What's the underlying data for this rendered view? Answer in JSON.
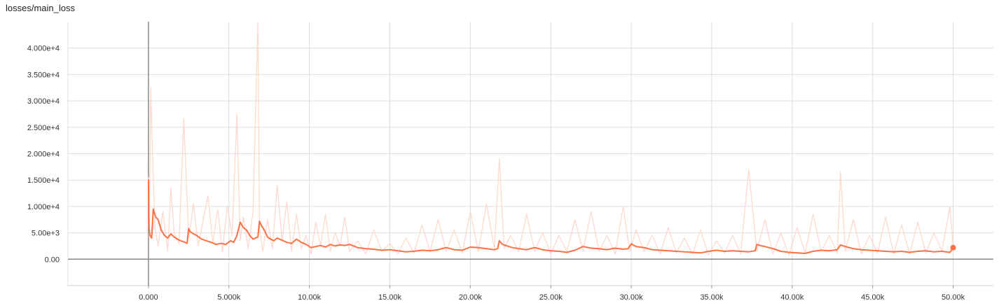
{
  "chart_title": "losses/main_loss",
  "chart_data": {
    "type": "line",
    "title": "losses/main_loss",
    "xlabel": "",
    "ylabel": "",
    "xlim": [
      -5000,
      52500
    ],
    "ylim": [
      -5000,
      45000
    ],
    "x_ticks": [
      0,
      5000,
      10000,
      15000,
      20000,
      25000,
      30000,
      35000,
      40000,
      45000,
      50000
    ],
    "x_tick_labels": [
      "0.000",
      "5.000k",
      "10.00k",
      "15.00k",
      "20.00k",
      "25.00k",
      "30.00k",
      "35.00k",
      "40.00k",
      "45.00k",
      "50.00k"
    ],
    "y_ticks": [
      0,
      5000,
      10000,
      15000,
      20000,
      25000,
      30000,
      35000,
      40000
    ],
    "y_tick_labels": [
      "0.00",
      "5.00e+3",
      "1.000e+4",
      "1.500e+4",
      "2.000e+4",
      "2.500e+4",
      "3.000e+4",
      "3.500e+4",
      "4.000e+4"
    ],
    "grid": true,
    "series": [
      {
        "color": "#fdd5ca",
        "style": "raw",
        "x": [
          0,
          50,
          150,
          250,
          400,
          600,
          900,
          1200,
          1400,
          1600,
          1900,
          2200,
          2500,
          2800,
          3100,
          3400,
          3700,
          4000,
          4300,
          4600,
          4900,
          5200,
          5500,
          5700,
          5900,
          6200,
          6500,
          6800,
          6900,
          7100,
          7400,
          7700,
          8000,
          8300,
          8600,
          8900,
          9200,
          9500,
          9800,
          10100,
          10400,
          10700,
          11000,
          11300,
          11600,
          11900,
          12200,
          12500,
          13000,
          13500,
          14000,
          14500,
          15000,
          15500,
          16000,
          16500,
          17000,
          17500,
          18000,
          18500,
          19000,
          19500,
          20000,
          20500,
          21000,
          21500,
          21800,
          22100,
          22500,
          23000,
          23500,
          24000,
          24500,
          25000,
          25500,
          26000,
          26500,
          27000,
          27500,
          28000,
          28500,
          29000,
          29500,
          29900,
          30300,
          30800,
          31300,
          31800,
          32300,
          32800,
          33300,
          33800,
          34300,
          34800,
          35300,
          35800,
          36300,
          36800,
          37300,
          37800,
          38300,
          38800,
          39300,
          39800,
          40300,
          40800,
          41300,
          41800,
          42300,
          42800,
          43000,
          43300,
          43800,
          44300,
          44800,
          45300,
          45800,
          46300,
          46800,
          47300,
          47800,
          48300,
          48800,
          49300,
          49800,
          50000
        ],
        "y": [
          15500,
          3500,
          32500,
          20500,
          6000,
          2500,
          9000,
          1500,
          13500,
          5000,
          3000,
          26500,
          4000,
          10500,
          2500,
          7500,
          12000,
          3000,
          9500,
          1500,
          10000,
          4500,
          27500,
          3500,
          8000,
          2000,
          9000,
          45000,
          6000,
          1500,
          7500,
          2000,
          14000,
          3500,
          11000,
          1500,
          8500,
          2000,
          4500,
          1000,
          7000,
          2500,
          8500,
          1500,
          5000,
          2500,
          8000,
          1500,
          3500,
          1000,
          5500,
          1500,
          3000,
          1000,
          4000,
          1200,
          6500,
          1500,
          7500,
          1500,
          5500,
          1200,
          9000,
          1500,
          10500,
          2000,
          19000,
          2000,
          4500,
          1500,
          8500,
          1500,
          5000,
          1000,
          4500,
          1500,
          7500,
          1500,
          9000,
          1500,
          4500,
          1000,
          10000,
          1500,
          5500,
          1500,
          4500,
          1000,
          6000,
          1200,
          4000,
          1000,
          5500,
          800,
          3500,
          1200,
          4500,
          1000,
          17000,
          1500,
          7500,
          1000,
          5000,
          800,
          6000,
          1200,
          8500,
          1500,
          4500,
          1200,
          16500,
          1500,
          7500,
          1000,
          4500,
          1200,
          8000,
          1000,
          6500,
          1000,
          7000,
          1200,
          5000,
          1500,
          10000,
          2000
        ]
      },
      {
        "color": "#ff7043",
        "style": "smoothed",
        "x": [
          0,
          30,
          100,
          200,
          300,
          450,
          600,
          800,
          1000,
          1200,
          1400,
          1600,
          1800,
          2000,
          2200,
          2400,
          2500,
          2600,
          2800,
          3000,
          3300,
          3600,
          3900,
          4200,
          4500,
          4800,
          5100,
          5300,
          5500,
          5700,
          5900,
          6100,
          6300,
          6500,
          6800,
          6900,
          7000,
          7200,
          7400,
          7600,
          7800,
          8000,
          8300,
          8600,
          8900,
          9200,
          9500,
          9800,
          10100,
          10400,
          10700,
          11000,
          11300,
          11600,
          11900,
          12200,
          12500,
          13000,
          13500,
          14000,
          14500,
          15000,
          15500,
          16000,
          16500,
          17000,
          17500,
          18000,
          18500,
          19000,
          19500,
          20000,
          20500,
          21000,
          21500,
          21700,
          21800,
          22000,
          22300,
          22600,
          23000,
          23500,
          24000,
          24500,
          25000,
          25500,
          26000,
          26500,
          27000,
          27500,
          28000,
          28500,
          29000,
          29500,
          29800,
          30000,
          30300,
          30800,
          31300,
          31800,
          32300,
          32800,
          33300,
          33800,
          34300,
          34800,
          35300,
          35800,
          36300,
          36800,
          37300,
          37700,
          37800,
          38000,
          38300,
          38800,
          39300,
          39800,
          40300,
          40800,
          41300,
          41800,
          42300,
          42800,
          43000,
          43300,
          43800,
          44300,
          44800,
          45300,
          45800,
          46300,
          46800,
          47300,
          47800,
          48300,
          48800,
          49300,
          49800,
          50000
        ],
        "y": [
          15000,
          6000,
          4500,
          4000,
          9500,
          8000,
          7500,
          5500,
          4500,
          4000,
          4800,
          4200,
          3800,
          3500,
          3300,
          3000,
          5800,
          5200,
          4800,
          4500,
          3800,
          3500,
          3200,
          2800,
          3000,
          2800,
          3500,
          3200,
          4500,
          7000,
          6000,
          5500,
          4500,
          3800,
          4200,
          7200,
          6500,
          5500,
          4200,
          3800,
          3500,
          4000,
          3600,
          3200,
          3000,
          3800,
          3200,
          2800,
          2200,
          2400,
          2600,
          2300,
          2800,
          2500,
          2700,
          2600,
          2800,
          2200,
          2000,
          1900,
          1700,
          1800,
          1600,
          1400,
          1500,
          1700,
          1600,
          1800,
          2200,
          1800,
          1700,
          2300,
          2200,
          2000,
          1800,
          2000,
          3500,
          2800,
          2500,
          2200,
          2000,
          1800,
          2200,
          1800,
          1600,
          1500,
          1300,
          1700,
          2400,
          2100,
          2000,
          1800,
          2100,
          1900,
          2000,
          2900,
          2400,
          2200,
          1800,
          1700,
          1600,
          1500,
          1400,
          1300,
          1200,
          1500,
          1700,
          1500,
          1600,
          1500,
          1400,
          1600,
          2800,
          2600,
          2400,
          2000,
          1500,
          1300,
          1200,
          1100,
          1500,
          1700,
          1600,
          1800,
          2700,
          2400,
          2000,
          1800,
          1700,
          1600,
          1500,
          1400,
          1500,
          1300,
          1500,
          1600,
          1400,
          1500,
          1300,
          2200
        ]
      }
    ]
  }
}
